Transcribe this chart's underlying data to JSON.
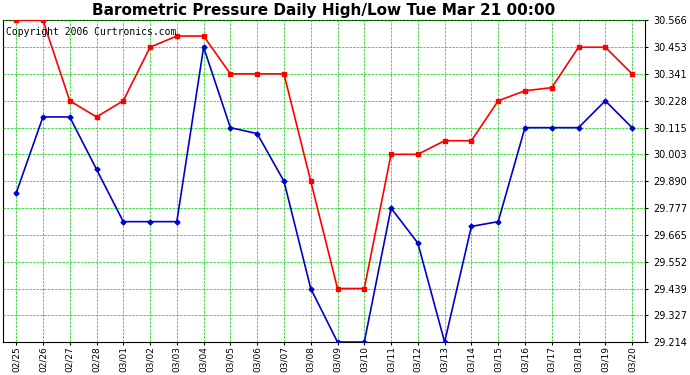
{
  "title": "Barometric Pressure Daily High/Low Tue Mar 21 00:00",
  "copyright": "Copyright 2006 Curtronics.com",
  "x_labels": [
    "02/25",
    "02/26",
    "02/27",
    "02/28",
    "03/01",
    "03/02",
    "03/03",
    "03/04",
    "03/05",
    "03/06",
    "03/07",
    "03/08",
    "03/09",
    "03/10",
    "03/11",
    "03/12",
    "03/13",
    "03/14",
    "03/15",
    "03/16",
    "03/17",
    "03/18",
    "03/19",
    "03/20"
  ],
  "high_values": [
    30.566,
    30.566,
    30.228,
    30.16,
    30.228,
    30.453,
    30.5,
    30.5,
    30.341,
    30.341,
    30.341,
    29.89,
    29.439,
    29.439,
    30.003,
    30.003,
    30.06,
    30.06,
    30.228,
    30.27,
    30.283,
    30.453,
    30.453,
    30.341
  ],
  "low_values": [
    29.84,
    30.16,
    30.16,
    29.94,
    29.72,
    29.72,
    29.72,
    30.453,
    30.115,
    30.09,
    29.89,
    29.439,
    29.214,
    29.214,
    29.777,
    29.63,
    29.214,
    29.7,
    29.72,
    30.115,
    30.115,
    30.115,
    30.228,
    30.115
  ],
  "ylim_min": 29.214,
  "ylim_max": 30.566,
  "yticks": [
    29.214,
    29.327,
    29.439,
    29.552,
    29.665,
    29.777,
    29.89,
    30.003,
    30.115,
    30.228,
    30.341,
    30.453,
    30.566
  ],
  "bg_color": "#ffffff",
  "plot_bg_color": "#ffffff",
  "grid_color": "#00cc00",
  "high_color": "#ff0000",
  "low_color": "#0000cc",
  "title_fontsize": 11,
  "copyright_fontsize": 7,
  "figwidth": 6.9,
  "figheight": 3.75
}
